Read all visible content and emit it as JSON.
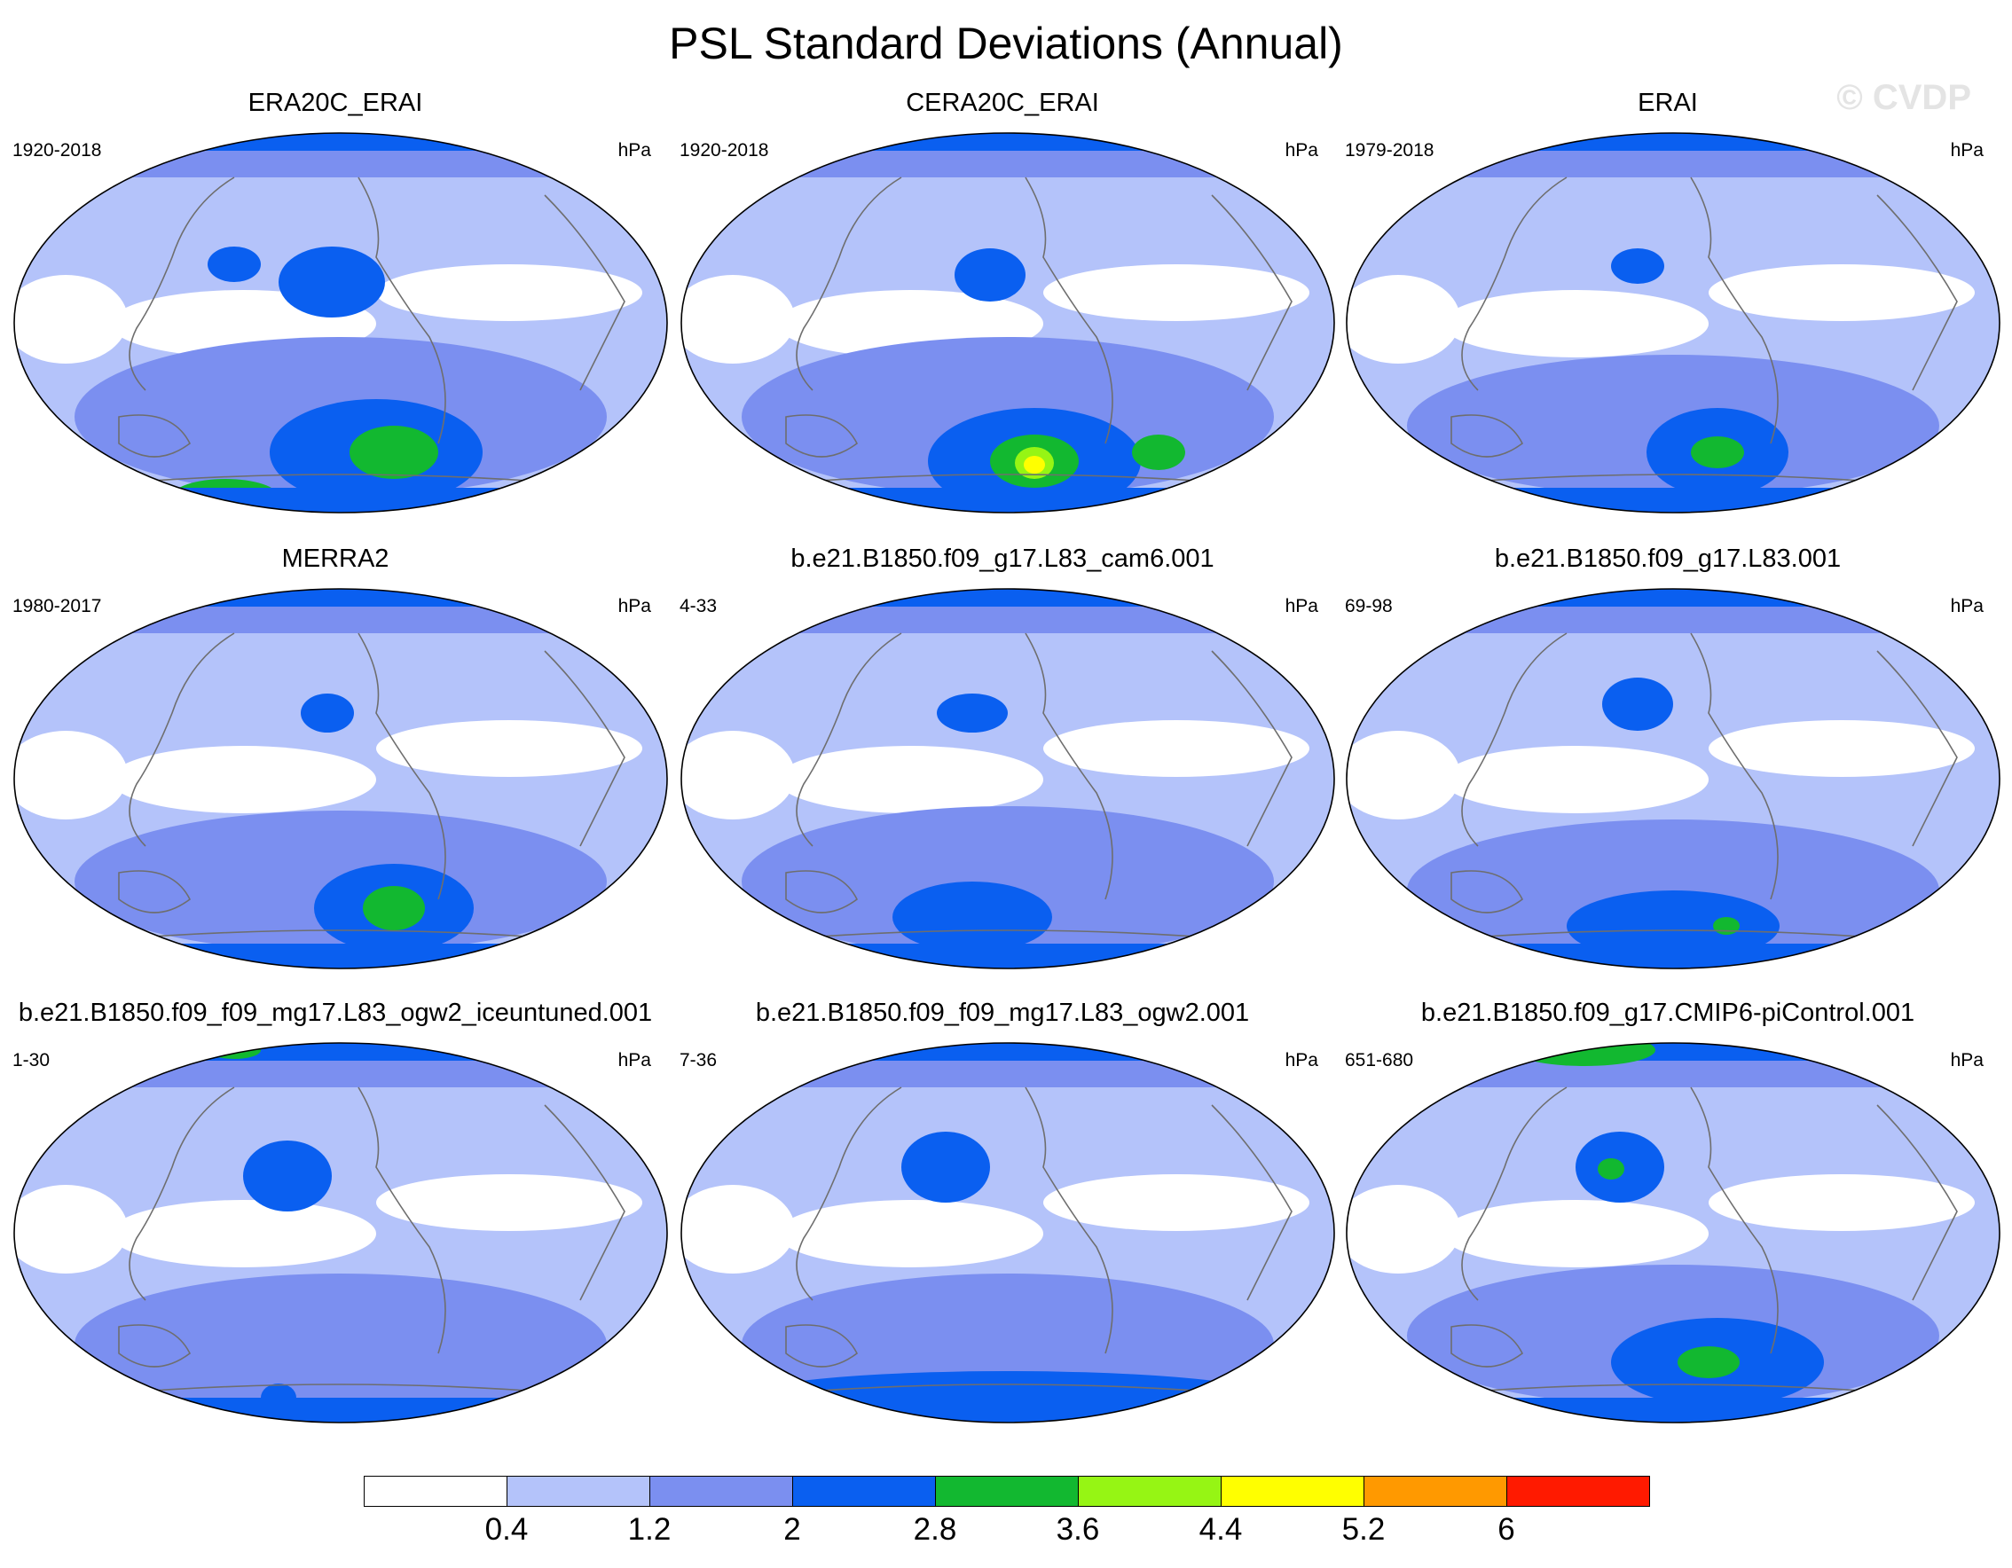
{
  "title": "PSL Standard Deviations (Annual)",
  "watermark": "© CVDP",
  "units": "hPa",
  "panels": [
    {
      "name": "ERA20C_ERAI",
      "years": "1920-2018"
    },
    {
      "name": "CERA20C_ERAI",
      "years": "1920-2018"
    },
    {
      "name": "ERAI",
      "years": "1979-2018"
    },
    {
      "name": "MERRA2",
      "years": "1980-2017"
    },
    {
      "name": "b.e21.B1850.f09_g17.L83_cam6.001",
      "years": "4-33"
    },
    {
      "name": "b.e21.B1850.f09_g17.L83.001",
      "years": "69-98"
    },
    {
      "name": "b.e21.B1850.f09_f09_mg17.L83_ogw2_iceuntuned.001",
      "years": "1-30"
    },
    {
      "name": "b.e21.B1850.f09_f09_mg17.L83_ogw2.001",
      "years": "7-36"
    },
    {
      "name": "b.e21.B1850.f09_g17.CMIP6-piControl.001",
      "years": "651-680"
    }
  ],
  "colorbar": {
    "levels": [
      "0.4",
      "1.2",
      "2",
      "2.8",
      "3.6",
      "4.4",
      "5.2",
      "6"
    ],
    "colors": [
      "#ffffff",
      "#b4c3fa",
      "#7b8ff0",
      "#0a5ff0",
      "#12b830",
      "#96f514",
      "#ffff00",
      "#ff9900",
      "#ff1a00"
    ]
  }
}
